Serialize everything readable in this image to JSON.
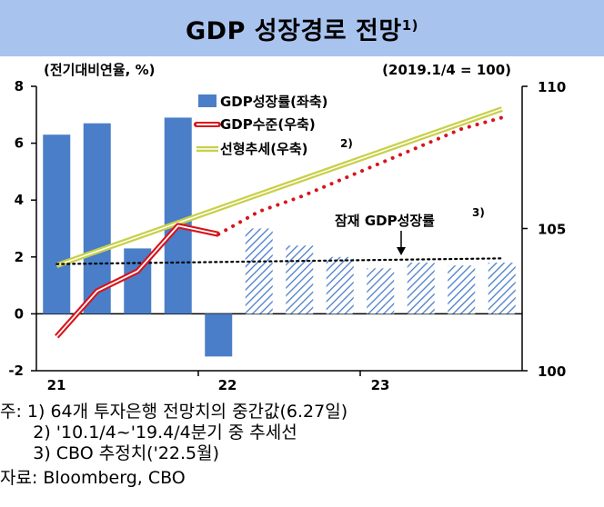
{
  "title": "GDP 성장경로 전망",
  "title_sup": "1)",
  "chart_data": {
    "type": "bar+line",
    "left_axis_label": "(전기대비연율, %)",
    "right_axis_label": "(2019.1/4 = 100)",
    "y_left": {
      "min": -2,
      "max": 8,
      "ticks": [
        "-2",
        "0",
        "2",
        "4",
        "6",
        "8"
      ]
    },
    "y_right": {
      "min": 100,
      "max": 110,
      "ticks": [
        "100",
        "105",
        "110"
      ]
    },
    "x_ticks": [
      "21",
      "22",
      "23"
    ],
    "legend": [
      {
        "label": "GDP성장률(좌축)",
        "sup": ""
      },
      {
        "label": "GDP수준(우축)",
        "sup": ""
      },
      {
        "label": "선형추세(우축)",
        "sup": "2)"
      }
    ],
    "bars_actual": [
      6.3,
      6.7,
      2.3,
      6.9,
      -1.5
    ],
    "bars_forecast": [
      3.0,
      2.4,
      2.0,
      1.6,
      1.8,
      1.7,
      1.8
    ],
    "gdp_level_actual": [
      101.2,
      102.8,
      103.5,
      105.1,
      104.8
    ],
    "gdp_level_forecast": [
      104.8,
      105.6,
      106.1,
      106.7,
      107.3,
      107.9,
      108.5,
      108.9
    ],
    "linear_trend": {
      "start": 103.7,
      "end": 109.2
    },
    "potential_growth_label": "잠재 GDP성장률",
    "potential_growth_sup": "3)",
    "potential_growth": [
      1.75,
      1.95
    ]
  },
  "notes": [
    "주: 1) 64개 투자은행 전망치의 중간값(6.27일)",
    "      2) '10.1/4~'19.4/4분기 중 추세선",
    "      3) CBO 추정치('22.5월)",
    "자료: Bloomberg, CBO"
  ],
  "colors": {
    "title_bg": "#a9c3ef",
    "bar": "#4a7ec8",
    "forecast_hatch": "#4a7ec8",
    "level_line": "#d8141b",
    "trend_line": "#c8d048",
    "potential": "#000000"
  }
}
